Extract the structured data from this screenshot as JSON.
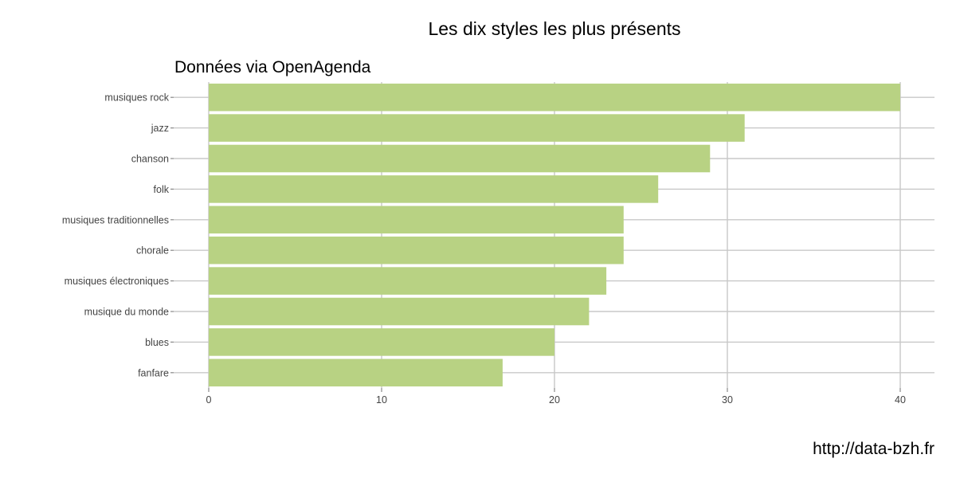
{
  "chart_data": {
    "type": "bar",
    "orientation": "horizontal",
    "title": "Les dix styles les plus présents",
    "subtitle": "Données via OpenAgenda",
    "caption": "http://data-bzh.fr",
    "categories": [
      "musiques rock",
      "jazz",
      "chanson",
      "folk",
      "musiques traditionnelles",
      "chorale",
      "musiques électroniques",
      "musique du monde",
      "blues",
      "fanfare"
    ],
    "values": [
      40,
      31,
      29,
      26,
      24,
      24,
      23,
      22,
      20,
      17
    ],
    "xlabel": "",
    "ylabel": "",
    "xlim": [
      0,
      42
    ],
    "x_ticks": [
      0,
      10,
      20,
      30,
      40
    ],
    "grid": true,
    "legend": "none",
    "bar_color": "#b8d283",
    "grid_color": "#c8c8c8"
  }
}
